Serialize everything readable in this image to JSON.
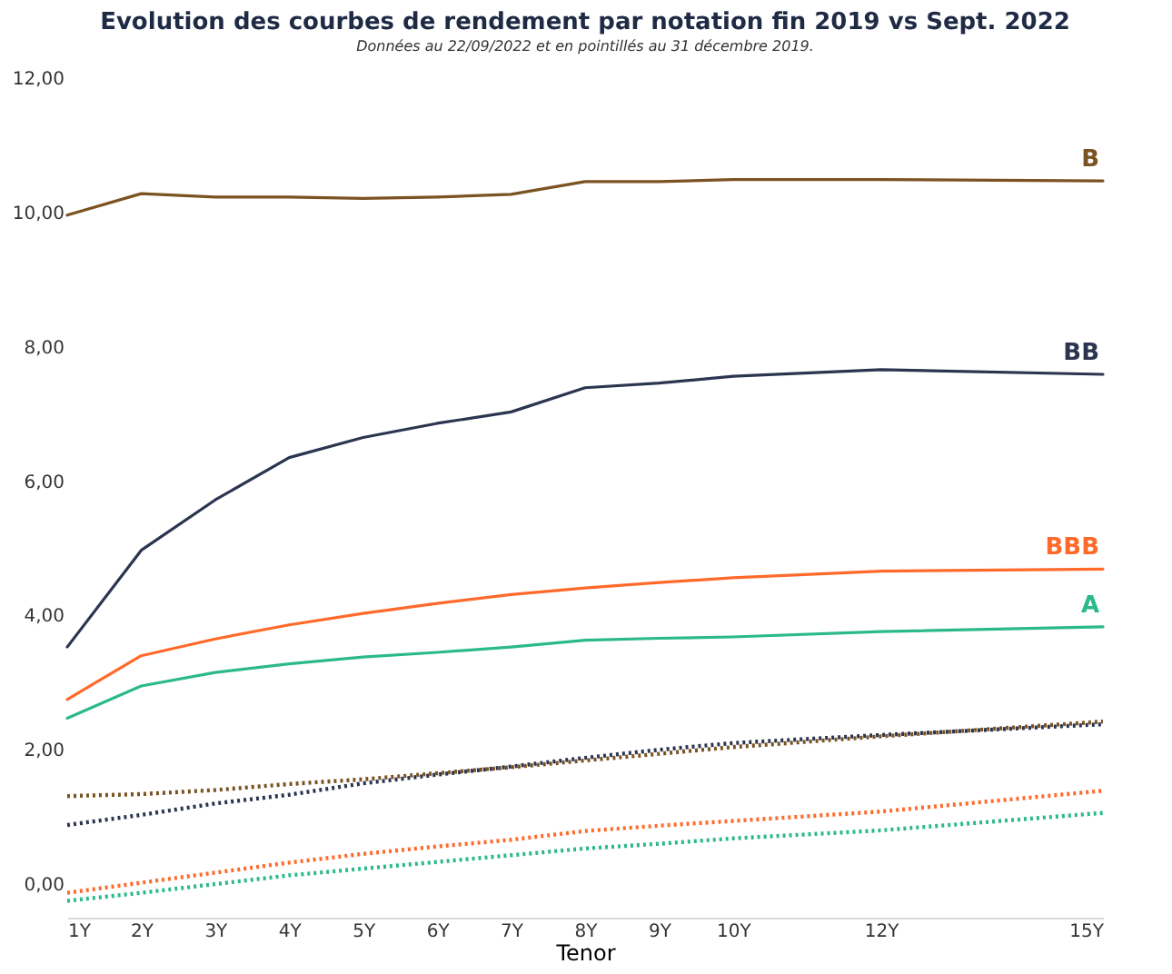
{
  "chart_data": {
    "type": "line",
    "title": "Evolution des courbes de rendement par notation fin 2019 vs Sept. 2022",
    "subtitle": "Données au 22/09/2022 et en pointillés au 31 décembre 2019.",
    "xlabel": "Tenor",
    "x": [
      1,
      2,
      3,
      4,
      5,
      6,
      7,
      8,
      9,
      10,
      12,
      15
    ],
    "xlim": [
      1,
      15
    ],
    "xticks": [
      {
        "value": 1,
        "label": "1Y"
      },
      {
        "value": 2,
        "label": "2Y"
      },
      {
        "value": 3,
        "label": "3Y"
      },
      {
        "value": 4,
        "label": "4Y"
      },
      {
        "value": 5,
        "label": "5Y"
      },
      {
        "value": 6,
        "label": "6Y"
      },
      {
        "value": 7,
        "label": "7Y"
      },
      {
        "value": 8,
        "label": "8Y"
      },
      {
        "value": 9,
        "label": "9Y"
      },
      {
        "value": 10,
        "label": "10Y"
      },
      {
        "value": 12,
        "label": "12Y"
      },
      {
        "value": 15,
        "label": "15Y"
      }
    ],
    "ylim": [
      -0.5,
      12
    ],
    "yticks": [
      {
        "value": 0,
        "label": "0,00"
      },
      {
        "value": 2,
        "label": "2,00"
      },
      {
        "value": 4,
        "label": "4,00"
      },
      {
        "value": 6,
        "label": "6,00"
      },
      {
        "value": 8,
        "label": "8,00"
      },
      {
        "value": 10,
        "label": "10,00"
      },
      {
        "value": 12,
        "label": "12,00"
      }
    ],
    "grid": false,
    "marker": "none",
    "series": [
      {
        "name": "B",
        "color": "#7b5221",
        "line_style": "solid",
        "values": [
          9.96,
          10.28,
          10.23,
          10.23,
          10.21,
          10.23,
          10.27,
          10.46,
          10.46,
          10.49,
          10.49,
          10.47
        ]
      },
      {
        "name": "BB",
        "color": "#2b3550",
        "line_style": "solid",
        "values": [
          3.53,
          4.97,
          5.72,
          6.35,
          6.65,
          6.86,
          7.03,
          7.39,
          7.46,
          7.56,
          7.66,
          7.59
        ]
      },
      {
        "name": "BBB",
        "color": "#ff6a2b",
        "line_style": "solid",
        "values": [
          2.75,
          3.4,
          3.65,
          3.86,
          4.03,
          4.18,
          4.31,
          4.41,
          4.49,
          4.56,
          4.66,
          4.69
        ]
      },
      {
        "name": "A",
        "color": "#2bb98a",
        "line_style": "solid",
        "values": [
          2.47,
          2.95,
          3.15,
          3.28,
          3.38,
          3.45,
          3.53,
          3.63,
          3.66,
          3.68,
          3.76,
          3.83
        ]
      },
      {
        "color": "#7b5221",
        "line_style": "dotted",
        "values": [
          1.31,
          1.34,
          1.4,
          1.49,
          1.56,
          1.65,
          1.74,
          1.84,
          1.94,
          2.04,
          2.2,
          2.42
        ]
      },
      {
        "color": "#2b3550",
        "line_style": "dotted",
        "values": [
          0.88,
          1.03,
          1.2,
          1.33,
          1.5,
          1.63,
          1.75,
          1.88,
          2.0,
          2.1,
          2.22,
          2.38
        ]
      },
      {
        "color": "#ff6a2b",
        "line_style": "dotted",
        "values": [
          -0.13,
          0.02,
          0.17,
          0.32,
          0.45,
          0.56,
          0.66,
          0.79,
          0.87,
          0.94,
          1.08,
          1.39
        ]
      },
      {
        "color": "#2bb98a",
        "line_style": "dotted",
        "values": [
          -0.25,
          -0.13,
          0.0,
          0.13,
          0.23,
          0.33,
          0.43,
          0.53,
          0.6,
          0.68,
          0.8,
          1.06
        ]
      }
    ]
  }
}
